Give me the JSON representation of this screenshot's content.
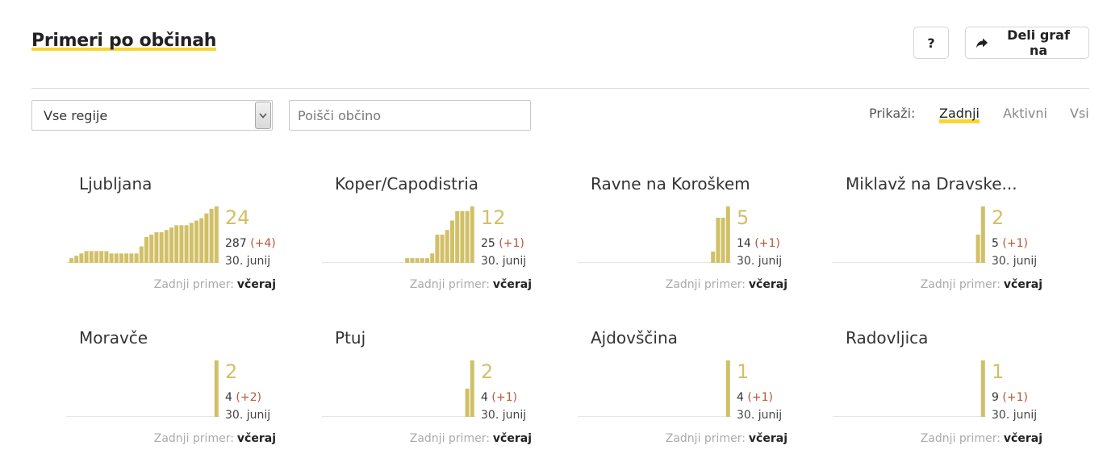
{
  "page": {
    "title": "Primeri po občinah"
  },
  "actions": {
    "help_label": "?",
    "share_label": "Deli graf na"
  },
  "filters": {
    "region_value": "Vse regije",
    "search_placeholder": "Poišči občino",
    "show_label": "Prikaži:",
    "show_options": [
      "Zadnji",
      "Aktivni",
      "Vsi"
    ],
    "show_selected": "Zadnji"
  },
  "colors": {
    "bar": "#d1c067",
    "accent": "#f8d632",
    "delta": "#b5563a",
    "baseline": "#e6e6e6"
  },
  "chart_data": [
    {
      "type": "bar",
      "title": "Ljubljana",
      "values": [
        2,
        3,
        4,
        5,
        5,
        5,
        5,
        5,
        4,
        4,
        4,
        4,
        4,
        4,
        7,
        11,
        12,
        13,
        13,
        14,
        15,
        16,
        16,
        16,
        17,
        18,
        19,
        21,
        23,
        24
      ],
      "current": "24",
      "total": "287",
      "delta": "(+4)",
      "date": "30. junij",
      "last_label": "Zadnji primer:",
      "last_value": "včeraj"
    },
    {
      "type": "bar",
      "title": "Koper/Capodistria",
      "values": [
        0,
        0,
        0,
        0,
        0,
        0,
        0,
        0,
        0,
        0,
        0,
        0,
        0,
        0,
        0,
        0,
        1,
        1,
        1,
        1,
        1,
        2,
        6,
        6,
        7,
        9,
        11,
        11,
        11,
        12
      ],
      "current": "12",
      "total": "25",
      "delta": "(+1)",
      "date": "30. junij",
      "last_label": "Zadnji primer:",
      "last_value": "včeraj"
    },
    {
      "type": "bar",
      "title": "Ravne na Koroškem",
      "values": [
        0,
        0,
        0,
        0,
        0,
        0,
        0,
        0,
        0,
        0,
        0,
        0,
        0,
        0,
        0,
        0,
        0,
        0,
        0,
        0,
        0,
        0,
        0,
        0,
        0,
        0,
        1,
        4,
        4,
        5
      ],
      "current": "5",
      "total": "14",
      "delta": "(+1)",
      "date": "30. junij",
      "last_label": "Zadnji primer:",
      "last_value": "včeraj"
    },
    {
      "type": "bar",
      "title": "Miklavž na Dravske...",
      "values": [
        0,
        0,
        0,
        0,
        0,
        0,
        0,
        0,
        0,
        0,
        0,
        0,
        0,
        0,
        0,
        0,
        0,
        0,
        0,
        0,
        0,
        0,
        0,
        0,
        0,
        0,
        0,
        0,
        1,
        2
      ],
      "current": "2",
      "total": "5",
      "delta": "(+1)",
      "date": "30. junij",
      "last_label": "Zadnji primer:",
      "last_value": "včeraj"
    },
    {
      "type": "bar",
      "title": "Moravče",
      "values": [
        0,
        0,
        0,
        0,
        0,
        0,
        0,
        0,
        0,
        0,
        0,
        0,
        0,
        0,
        0,
        0,
        0,
        0,
        0,
        0,
        0,
        0,
        0,
        0,
        0,
        0,
        0,
        0,
        0,
        2
      ],
      "current": "2",
      "total": "4",
      "delta": "(+2)",
      "date": "30. junij",
      "last_label": "Zadnji primer:",
      "last_value": "včeraj"
    },
    {
      "type": "bar",
      "title": "Ptuj",
      "values": [
        0,
        0,
        0,
        0,
        0,
        0,
        0,
        0,
        0,
        0,
        0,
        0,
        0,
        0,
        0,
        0,
        0,
        0,
        0,
        0,
        0,
        0,
        0,
        0,
        0,
        0,
        0,
        0,
        1,
        2
      ],
      "current": "2",
      "total": "4",
      "delta": "(+1)",
      "date": "30. junij",
      "last_label": "Zadnji primer:",
      "last_value": "včeraj"
    },
    {
      "type": "bar",
      "title": "Ajdovščina",
      "values": [
        0,
        0,
        0,
        0,
        0,
        0,
        0,
        0,
        0,
        0,
        0,
        0,
        0,
        0,
        0,
        0,
        0,
        0,
        0,
        0,
        0,
        0,
        0,
        0,
        0,
        0,
        0,
        0,
        0,
        1
      ],
      "current": "1",
      "total": "4",
      "delta": "(+1)",
      "date": "30. junij",
      "last_label": "Zadnji primer:",
      "last_value": "včeraj"
    },
    {
      "type": "bar",
      "title": "Radovljica",
      "values": [
        0,
        0,
        0,
        0,
        0,
        0,
        0,
        0,
        0,
        0,
        0,
        0,
        0,
        0,
        0,
        0,
        0,
        0,
        0,
        0,
        0,
        0,
        0,
        0,
        0,
        0,
        0,
        0,
        0,
        1
      ],
      "current": "1",
      "total": "9",
      "delta": "(+1)",
      "date": "30. junij",
      "last_label": "Zadnji primer:",
      "last_value": "včeraj"
    }
  ]
}
